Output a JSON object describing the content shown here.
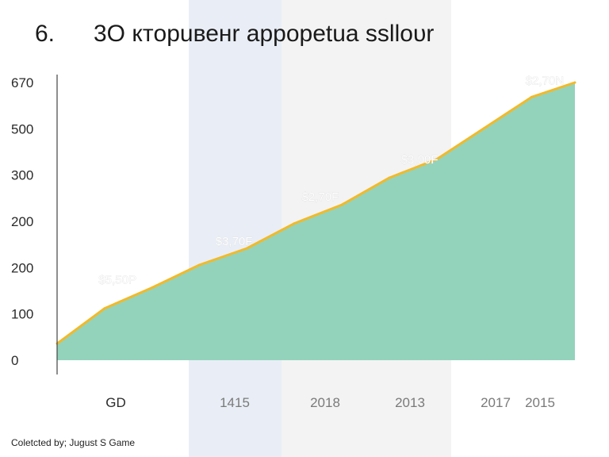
{
  "header": {
    "number": "6.",
    "title": "3O ктopuвенr appopetua sslloυr"
  },
  "footer": {
    "credit": "Coletcted by; Jugust S Game"
  },
  "colors": {
    "area_fill": "#93d3bc",
    "line": "#f2b928",
    "band_blue": "#e9eef6",
    "band_gray": "#f3f3f3",
    "axis": "#444444",
    "tick_text": "#2a2a2a",
    "cat_text_light": "#7a7a7a"
  },
  "chart_data": {
    "type": "area",
    "title": "3O ктopuвенr appopetua sslloυr",
    "xlabel": "",
    "ylabel": "",
    "ytick_labels": [
      "0",
      "100",
      "200",
      "200",
      "300",
      "500",
      "670"
    ],
    "ylim": [
      0,
      670
    ],
    "categories": [
      "GD",
      "1415",
      "2018",
      "2013",
      "2017",
      "2015"
    ],
    "x_range": [
      0,
      12
    ],
    "series": [
      {
        "x": [
          0,
          1.1,
          2.2,
          3.3,
          4.4,
          5.5,
          6.6,
          7.7,
          8.8,
          9.9,
          11,
          12
        ],
        "values": [
          40,
          125,
          175,
          230,
          270,
          330,
          375,
          440,
          485,
          560,
          635,
          670
        ]
      }
    ],
    "annotations": [
      {
        "text": "$5,50P",
        "x": 1.4,
        "y": 185
      },
      {
        "text": "$3,70F",
        "x": 4.1,
        "y": 278
      },
      {
        "text": "$2,70F",
        "x": 6.1,
        "y": 385
      },
      {
        "text": "$3,00F",
        "x": 8.4,
        "y": 475
      },
      {
        "text": "$2,70N",
        "x": 11.3,
        "y": 665
      }
    ],
    "grid": false,
    "legend": "none"
  }
}
